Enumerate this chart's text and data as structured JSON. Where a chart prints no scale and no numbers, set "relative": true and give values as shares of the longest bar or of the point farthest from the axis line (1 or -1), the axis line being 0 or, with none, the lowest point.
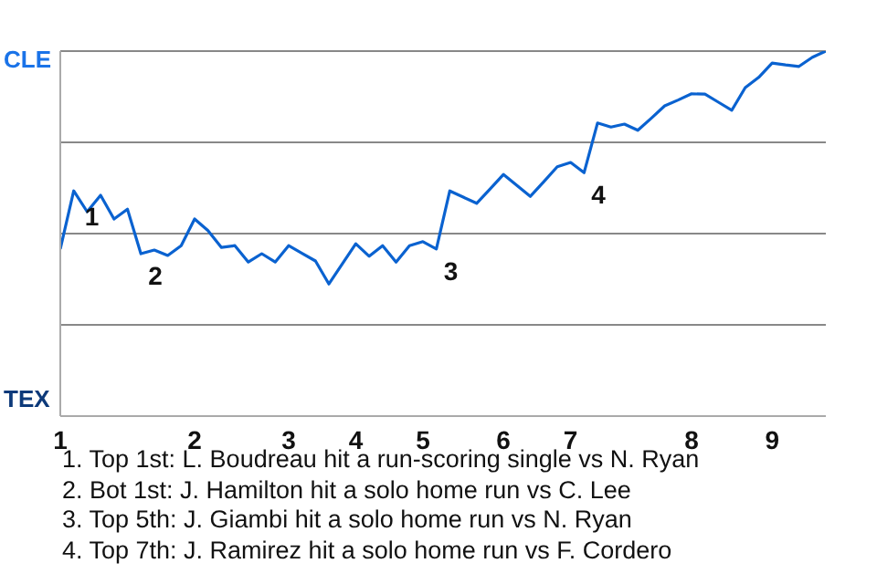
{
  "chart_data": {
    "type": "line",
    "relative": true,
    "categories": [
      "1",
      null,
      null,
      null,
      null,
      null,
      null,
      null,
      null,
      null,
      "2",
      null,
      null,
      null,
      null,
      null,
      null,
      "3",
      null,
      null,
      null,
      null,
      "4",
      null,
      null,
      null,
      null,
      "5",
      null,
      null,
      null,
      null,
      null,
      "6",
      null,
      null,
      null,
      null,
      "7",
      null,
      null,
      null,
      null,
      null,
      null,
      null,
      null,
      "8",
      null,
      null,
      null,
      null,
      null,
      "9",
      null,
      null,
      null,
      null
    ],
    "series": [
      {
        "color": "#0a62d0",
        "values": [
          0.458,
          0.617,
          0.56,
          0.605,
          0.54,
          0.567,
          0.445,
          0.455,
          0.44,
          0.467,
          0.54,
          0.508,
          0.462,
          0.467,
          0.422,
          0.445,
          0.422,
          0.467,
          0.446,
          0.425,
          0.362,
          0.417,
          0.472,
          0.438,
          0.467,
          0.422,
          0.467,
          0.478,
          0.458,
          0.617,
          0.6,
          0.583,
          0.622,
          0.662,
          0.632,
          0.602,
          0.642,
          0.683,
          0.695,
          0.667,
          0.803,
          0.792,
          0.8,
          0.783,
          0.816,
          0.85,
          0.866,
          0.883,
          0.882,
          0.86,
          0.838,
          0.9,
          0.928,
          0.967,
          0.962,
          0.958,
          0.983,
          1
        ],
        "name": null
      }
    ],
    "grid": "y",
    "annotations": [
      "1",
      "2",
      "3",
      "4",
      "CLE",
      "TEX",
      "1. Top 1st: L. Boudreau hit a run-scoring single vs N. Ryan",
      "2. Bot 1st: J. Hamilton hit a solo home run vs C. Lee",
      "3. Top 5th: J. Giambi hit a solo home run vs N. Ryan",
      "4. Top 7th: J. Ramirez hit a solo home run vs F. Cordero"
    ]
  }
}
